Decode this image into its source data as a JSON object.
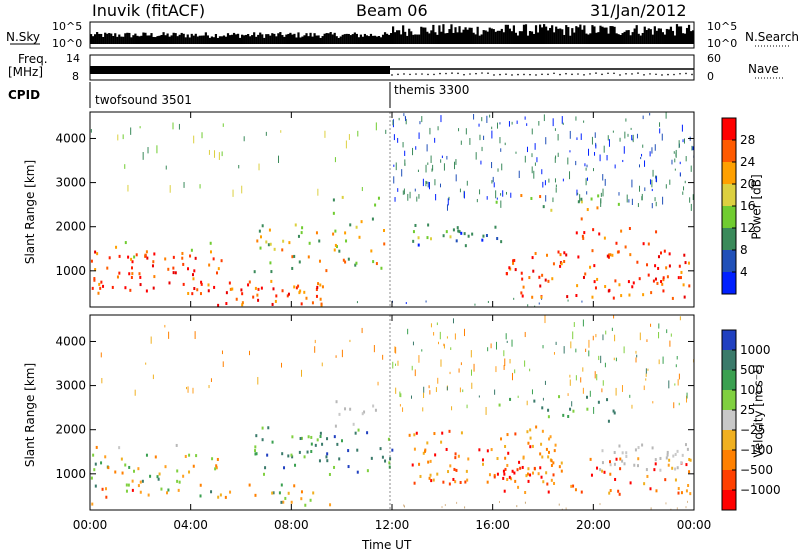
{
  "header": {
    "station": "Inuvik (fitACF)",
    "beam": "Beam 06",
    "date": "31/Jan/2012"
  },
  "strip_panels": {
    "nsky_label": "N.Sky",
    "nsearch_label": "N.Search",
    "nsky_ticks": [
      "10^5",
      "10^0"
    ],
    "nsearch_ticks": [
      "10^5",
      "10^0"
    ],
    "freq_label_line1": "Freq.",
    "freq_label_line2": "[MHz]",
    "freq_ticks": [
      "14",
      "8"
    ],
    "nave_label": "Nave",
    "nave_ticks": [
      "60",
      "0"
    ],
    "cpid_label": "CPID",
    "cpid_modes": [
      {
        "name": "twofsound 3501",
        "start": "00:00"
      },
      {
        "name": "themis 3300",
        "start": "12:00"
      }
    ]
  },
  "chart_data": [
    {
      "type": "heatmap",
      "title": "",
      "xlabel": "Time UT",
      "ylabel": "Slant Range [km]",
      "x_ticks": [
        "00:00",
        "04:00",
        "08:00",
        "12:00",
        "16:00",
        "20:00",
        "00:00"
      ],
      "xlim": [
        0,
        24
      ],
      "y_ticks": [
        "1000",
        "2000",
        "3000",
        "4000"
      ],
      "ylim": [
        180,
        4600
      ],
      "colorbar": {
        "label": "Power [dB]",
        "ticks": [
          "28",
          "24",
          "20",
          "16",
          "12",
          "8",
          "4"
        ],
        "colors": [
          "#ff0000",
          "#ff5a00",
          "#ffa000",
          "#dcd040",
          "#70cc30",
          "#3a8a5a",
          "#2050b8",
          "#0020ff"
        ]
      }
    },
    {
      "type": "heatmap",
      "title": "",
      "xlabel": "Time UT",
      "ylabel": "Slant Range [km]",
      "x_ticks": [
        "00:00",
        "04:00",
        "08:00",
        "12:00",
        "16:00",
        "20:00",
        "00:00"
      ],
      "xlim": [
        0,
        24
      ],
      "y_ticks": [
        "1000",
        "2000",
        "3000",
        "4000"
      ],
      "ylim": [
        180,
        4600
      ],
      "colorbar": {
        "label": "Velocity [m s⁻¹]",
        "ticks": [
          "1000",
          "500",
          "100",
          "25",
          "−25",
          "−100",
          "−500",
          "−1000"
        ],
        "colors": [
          "#2040c0",
          "#3a7a6a",
          "#3aa050",
          "#80d040",
          "#c8c8c8",
          "#f0b020",
          "#ff8000",
          "#ff4000",
          "#ff0000"
        ]
      }
    }
  ]
}
